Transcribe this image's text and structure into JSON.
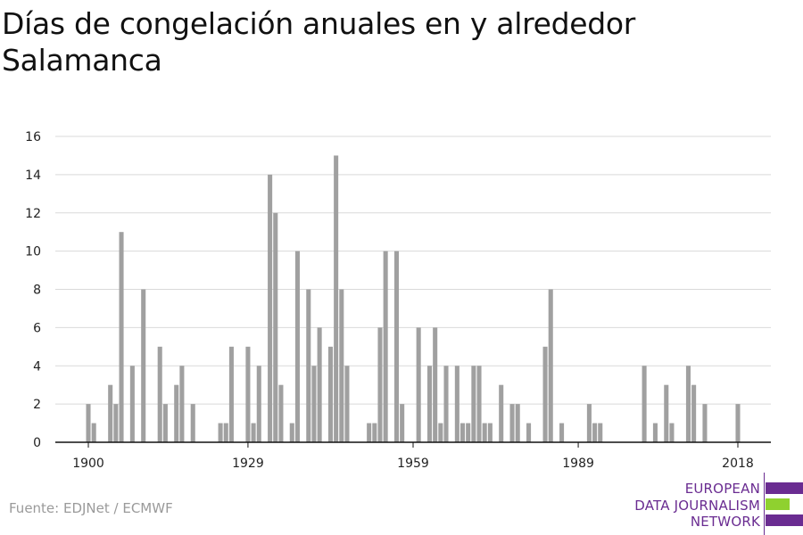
{
  "title": "Días de congelación anuales en y alrededor Salamanca",
  "source": "Fuente: EDJNet / ECMWF",
  "logo": {
    "line1": "EUROPEAN",
    "line2": "DATA JOURNALISM",
    "line3": "NETWORK",
    "colors": {
      "purple": "#6a2c91",
      "green": "#8fd12f"
    }
  },
  "chart_data": {
    "type": "bar",
    "title": "Días de congelación anuales en y alrededor Salamanca",
    "xlabel": "",
    "ylabel": "",
    "x_tick_labels": [
      "1900",
      "1929",
      "1959",
      "1989",
      "2018"
    ],
    "y_tick_labels": [
      "0",
      "2",
      "4",
      "6",
      "8",
      "10",
      "12",
      "14",
      "16"
    ],
    "ylim": [
      0,
      16
    ],
    "xlim": [
      1894,
      2024
    ],
    "grid": true,
    "bar_color": "#a0a0a0",
    "categories": [
      1900,
      1901,
      1902,
      1903,
      1904,
      1905,
      1906,
      1907,
      1908,
      1909,
      1910,
      1911,
      1912,
      1913,
      1914,
      1915,
      1916,
      1917,
      1918,
      1919,
      1920,
      1921,
      1922,
      1923,
      1924,
      1925,
      1926,
      1927,
      1928,
      1929,
      1930,
      1931,
      1932,
      1933,
      1934,
      1935,
      1936,
      1937,
      1938,
      1939,
      1940,
      1941,
      1942,
      1943,
      1944,
      1945,
      1946,
      1947,
      1948,
      1949,
      1950,
      1951,
      1952,
      1953,
      1954,
      1955,
      1956,
      1957,
      1958,
      1959,
      1960,
      1961,
      1962,
      1963,
      1964,
      1965,
      1966,
      1967,
      1968,
      1969,
      1970,
      1971,
      1972,
      1973,
      1974,
      1975,
      1976,
      1977,
      1978,
      1979,
      1980,
      1981,
      1982,
      1983,
      1984,
      1985,
      1986,
      1987,
      1988,
      1989,
      1990,
      1991,
      1992,
      1993,
      1994,
      1995,
      1996,
      1997,
      1998,
      1999,
      2000,
      2001,
      2002,
      2003,
      2004,
      2005,
      2006,
      2007,
      2008,
      2009,
      2010,
      2011,
      2012,
      2013,
      2014,
      2015,
      2016,
      2017,
      2018,
      2019,
      2020
    ],
    "values": [
      2,
      1,
      0,
      0,
      3,
      2,
      11,
      0,
      4,
      0,
      8,
      0,
      0,
      5,
      2,
      0,
      3,
      4,
      0,
      2,
      0,
      0,
      0,
      0,
      1,
      1,
      5,
      0,
      0,
      5,
      1,
      4,
      0,
      14,
      12,
      3,
      0,
      1,
      10,
      0,
      8,
      4,
      6,
      0,
      5,
      15,
      8,
      4,
      0,
      0,
      0,
      1,
      1,
      6,
      10,
      0,
      10,
      2,
      0,
      0,
      6,
      0,
      4,
      6,
      1,
      4,
      0,
      4,
      1,
      1,
      4,
      4,
      1,
      1,
      0,
      3,
      0,
      2,
      2,
      0,
      1,
      0,
      0,
      5,
      8,
      0,
      1,
      0,
      0,
      0,
      0,
      2,
      1,
      1,
      0,
      0,
      0,
      0,
      0,
      0,
      0,
      4,
      0,
      1,
      0,
      3,
      1,
      0,
      0,
      4,
      3,
      0,
      2,
      0,
      0,
      0,
      0,
      0,
      2,
      0,
      0
    ]
  }
}
